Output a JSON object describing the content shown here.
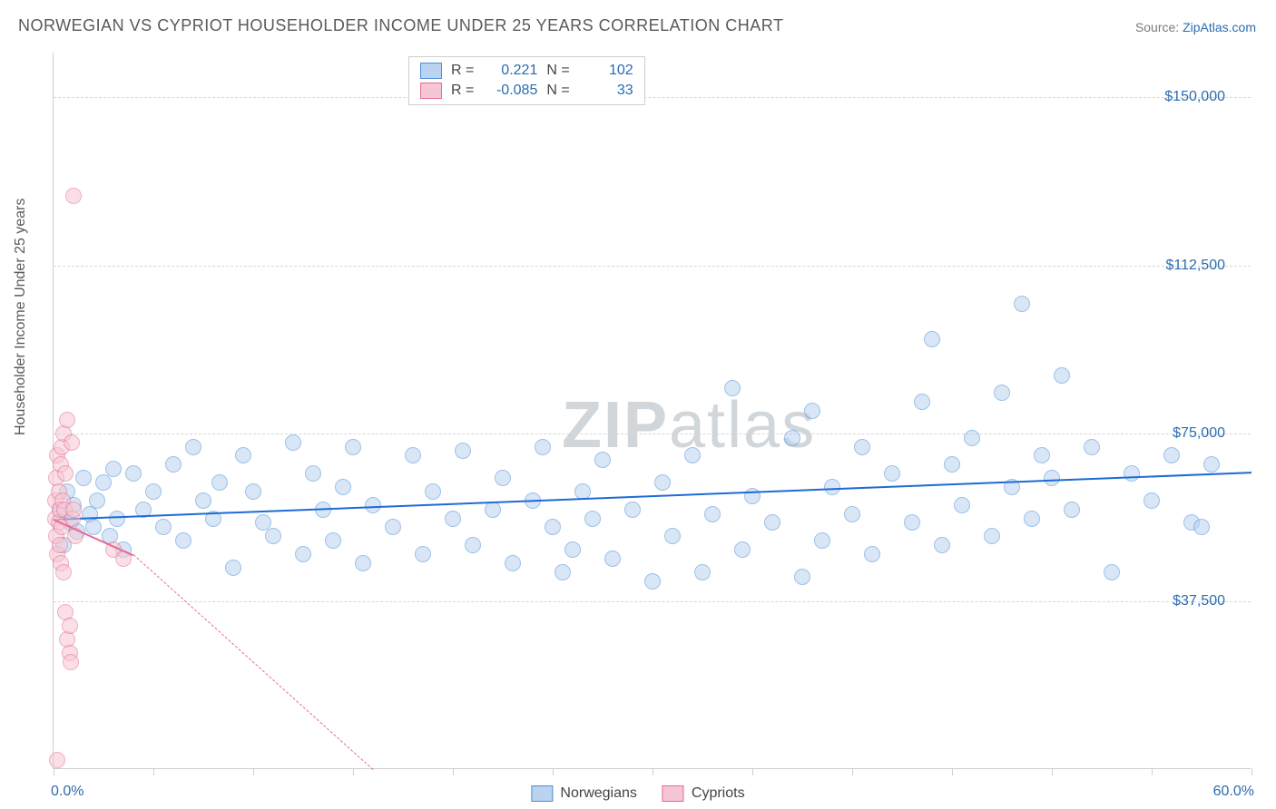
{
  "title": "NORWEGIAN VS CYPRIOT HOUSEHOLDER INCOME UNDER 25 YEARS CORRELATION CHART",
  "source_prefix": "Source: ",
  "source_link": "ZipAtlas.com",
  "y_axis_label": "Householder Income Under 25 years",
  "watermark": {
    "bold": "ZIP",
    "rest": "atlas"
  },
  "chart": {
    "type": "scatter",
    "background_color": "#ffffff",
    "grid_color": "#d8d8d8",
    "axis_color": "#cfcfcf",
    "tick_label_color": "#2b6cb0",
    "x": {
      "min": 0.0,
      "max": 60.0,
      "label_min": "0.0%",
      "label_max": "60.0%",
      "ticks": [
        0,
        5,
        10,
        15,
        20,
        25,
        30,
        35,
        40,
        45,
        50,
        55,
        60
      ]
    },
    "y": {
      "min": 0,
      "max": 160000,
      "gridlines": [
        37500,
        75000,
        112500,
        150000
      ],
      "labels": [
        "$37,500",
        "$75,000",
        "$112,500",
        "$150,000"
      ]
    },
    "marker_radius": 9,
    "marker_stroke_width": 1.5,
    "trend_line_width": 2.5,
    "series": [
      {
        "name": "Norwegians",
        "fill": "#b9d3f0",
        "stroke": "#4f8fd6",
        "fill_opacity": 0.55,
        "R_label": "R =",
        "R": "0.221",
        "N_label": "N =",
        "N": "102",
        "trend": {
          "x1": 0.0,
          "y1": 56000,
          "x2": 60.0,
          "y2": 66500,
          "color": "#1e6bd6",
          "dashed_extension": false
        },
        "points": [
          [
            0.3,
            58000
          ],
          [
            0.5,
            50000
          ],
          [
            0.7,
            62000
          ],
          [
            0.8,
            55000
          ],
          [
            1.0,
            59000
          ],
          [
            1.2,
            53000
          ],
          [
            1.5,
            65000
          ],
          [
            1.8,
            57000
          ],
          [
            2.0,
            54000
          ],
          [
            2.2,
            60000
          ],
          [
            2.5,
            64000
          ],
          [
            2.8,
            52000
          ],
          [
            3.0,
            67000
          ],
          [
            3.2,
            56000
          ],
          [
            3.5,
            49000
          ],
          [
            4.0,
            66000
          ],
          [
            4.5,
            58000
          ],
          [
            5.0,
            62000
          ],
          [
            5.5,
            54000
          ],
          [
            6.0,
            68000
          ],
          [
            6.5,
            51000
          ],
          [
            7.0,
            72000
          ],
          [
            7.5,
            60000
          ],
          [
            8.0,
            56000
          ],
          [
            8.3,
            64000
          ],
          [
            9.0,
            45000
          ],
          [
            9.5,
            70000
          ],
          [
            10.0,
            62000
          ],
          [
            10.5,
            55000
          ],
          [
            11.0,
            52000
          ],
          [
            12.0,
            73000
          ],
          [
            12.5,
            48000
          ],
          [
            13.0,
            66000
          ],
          [
            13.5,
            58000
          ],
          [
            14.0,
            51000
          ],
          [
            14.5,
            63000
          ],
          [
            15.0,
            72000
          ],
          [
            15.5,
            46000
          ],
          [
            16.0,
            59000
          ],
          [
            17.0,
            54000
          ],
          [
            18.0,
            70000
          ],
          [
            18.5,
            48000
          ],
          [
            19.0,
            62000
          ],
          [
            20.0,
            56000
          ],
          [
            20.5,
            71000
          ],
          [
            21.0,
            50000
          ],
          [
            22.0,
            58000
          ],
          [
            22.5,
            65000
          ],
          [
            23.0,
            46000
          ],
          [
            24.0,
            60000
          ],
          [
            24.5,
            72000
          ],
          [
            25.0,
            54000
          ],
          [
            25.5,
            44000
          ],
          [
            26.0,
            49000
          ],
          [
            26.5,
            62000
          ],
          [
            27.0,
            56000
          ],
          [
            27.5,
            69000
          ],
          [
            28.0,
            47000
          ],
          [
            29.0,
            58000
          ],
          [
            30.0,
            42000
          ],
          [
            30.5,
            64000
          ],
          [
            31.0,
            52000
          ],
          [
            32.0,
            70000
          ],
          [
            32.5,
            44000
          ],
          [
            33.0,
            57000
          ],
          [
            34.0,
            85000
          ],
          [
            34.5,
            49000
          ],
          [
            35.0,
            61000
          ],
          [
            36.0,
            55000
          ],
          [
            37.0,
            74000
          ],
          [
            37.5,
            43000
          ],
          [
            38.0,
            80000
          ],
          [
            38.5,
            51000
          ],
          [
            39.0,
            63000
          ],
          [
            40.0,
            57000
          ],
          [
            40.5,
            72000
          ],
          [
            41.0,
            48000
          ],
          [
            42.0,
            66000
          ],
          [
            43.0,
            55000
          ],
          [
            43.5,
            82000
          ],
          [
            44.0,
            96000
          ],
          [
            44.5,
            50000
          ],
          [
            45.0,
            68000
          ],
          [
            45.5,
            59000
          ],
          [
            46.0,
            74000
          ],
          [
            47.0,
            52000
          ],
          [
            47.5,
            84000
          ],
          [
            48.0,
            63000
          ],
          [
            48.5,
            104000
          ],
          [
            49.0,
            56000
          ],
          [
            49.5,
            70000
          ],
          [
            50.0,
            65000
          ],
          [
            50.5,
            88000
          ],
          [
            51.0,
            58000
          ],
          [
            52.0,
            72000
          ],
          [
            53.0,
            44000
          ],
          [
            54.0,
            66000
          ],
          [
            55.0,
            60000
          ],
          [
            56.0,
            70000
          ],
          [
            57.0,
            55000
          ],
          [
            57.5,
            54000
          ],
          [
            58.0,
            68000
          ]
        ]
      },
      {
        "name": "Cypriots",
        "fill": "#f6c6d4",
        "stroke": "#e76b91",
        "fill_opacity": 0.55,
        "R_label": "R =",
        "R": "-0.085",
        "N_label": "N =",
        "N": "33",
        "trend": {
          "x1": 0.0,
          "y1": 56000,
          "x2": 4.0,
          "y2": 48000,
          "color": "#e76b91",
          "dashed_extension": true,
          "dash_x2": 16.0,
          "dash_y2": 0
        },
        "points": [
          [
            0.1,
            56000
          ],
          [
            0.1,
            60000
          ],
          [
            0.15,
            52000
          ],
          [
            0.15,
            65000
          ],
          [
            0.2,
            48000
          ],
          [
            0.2,
            70000
          ],
          [
            0.25,
            55000
          ],
          [
            0.25,
            62000
          ],
          [
            0.3,
            50000
          ],
          [
            0.3,
            58000
          ],
          [
            0.35,
            68000
          ],
          [
            0.35,
            46000
          ],
          [
            0.4,
            72000
          ],
          [
            0.4,
            54000
          ],
          [
            0.45,
            60000
          ],
          [
            0.5,
            75000
          ],
          [
            0.5,
            44000
          ],
          [
            0.55,
            58000
          ],
          [
            0.6,
            66000
          ],
          [
            0.6,
            35000
          ],
          [
            0.7,
            29000
          ],
          [
            0.7,
            78000
          ],
          [
            0.8,
            32000
          ],
          [
            0.8,
            26000
          ],
          [
            0.85,
            24000
          ],
          [
            0.9,
            73000
          ],
          [
            0.95,
            56000
          ],
          [
            1.0,
            58000
          ],
          [
            1.0,
            128000
          ],
          [
            1.1,
            52000
          ],
          [
            0.2,
            2000
          ],
          [
            3.0,
            49000
          ],
          [
            3.5,
            47000
          ]
        ]
      }
    ]
  },
  "bottom_legend": [
    {
      "label": "Norwegians",
      "fill": "#b9d3f0",
      "stroke": "#4f8fd6"
    },
    {
      "label": "Cypriots",
      "fill": "#f6c6d4",
      "stroke": "#e76b91"
    }
  ]
}
